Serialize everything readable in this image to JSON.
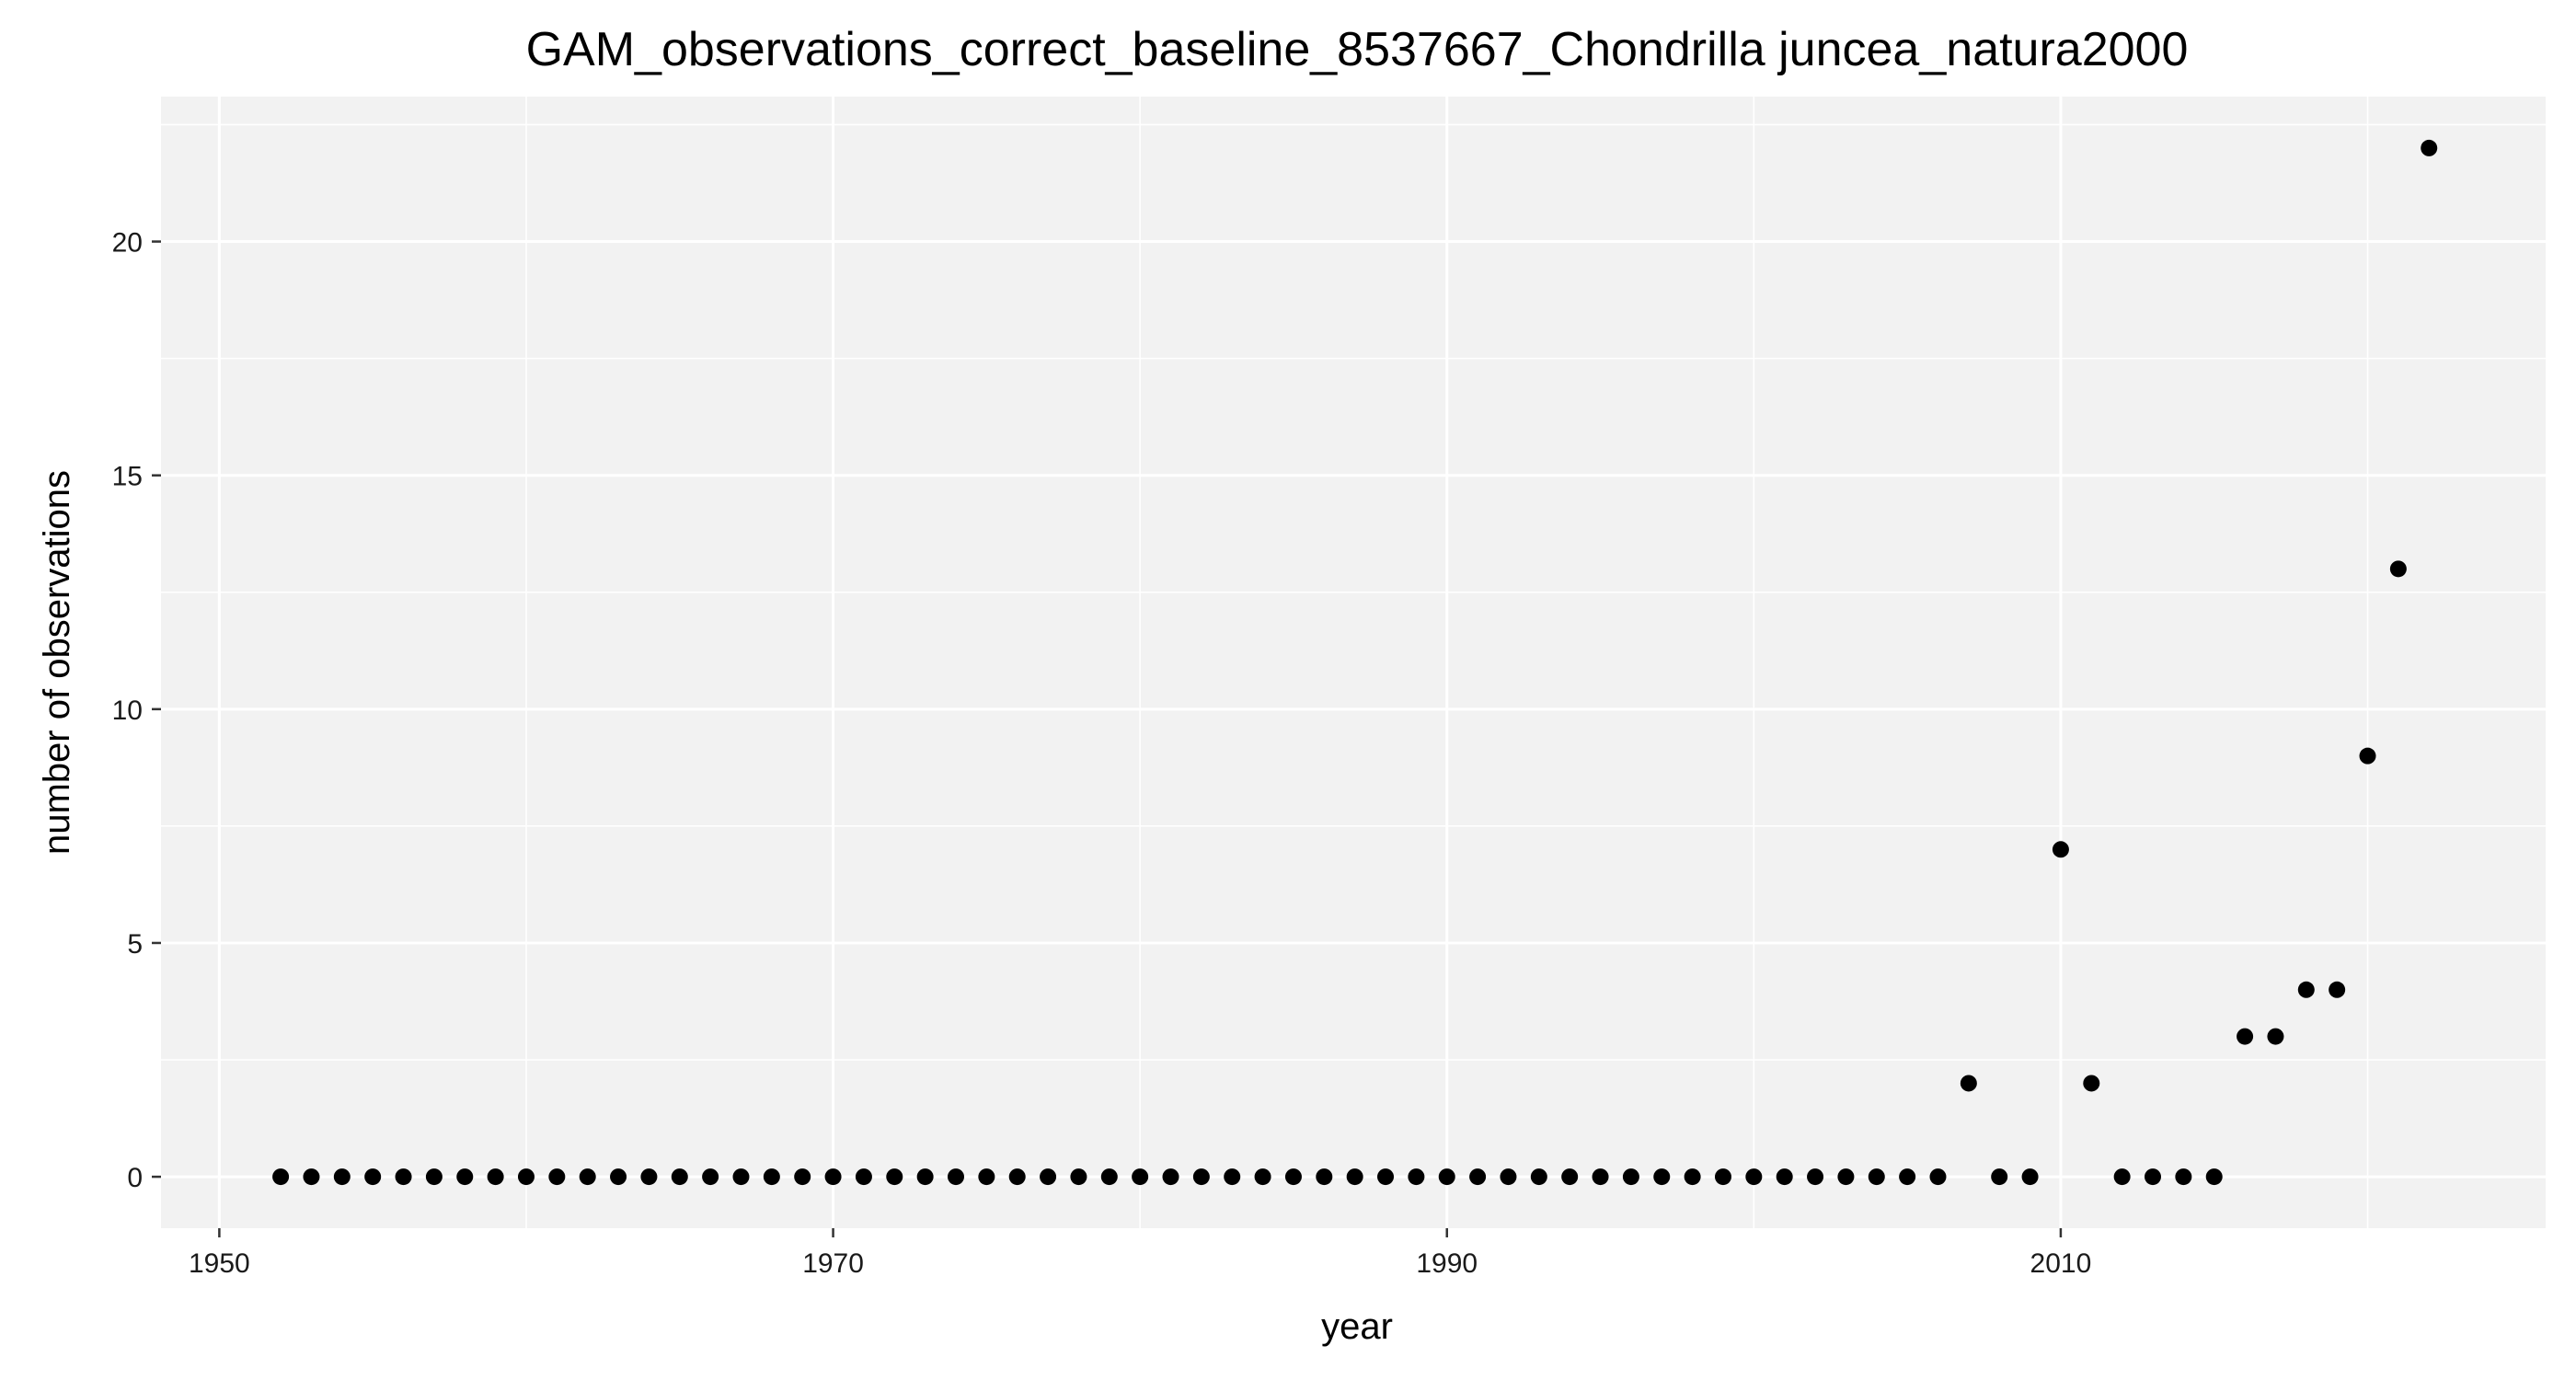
{
  "chart_data": {
    "type": "scatter",
    "title": "GAM_observations_correct_baseline_8537667_Chondrilla juncea_natura2000",
    "xlabel": "year",
    "ylabel": "number of observations",
    "xlim": [
      1948.1,
      2025.8
    ],
    "ylim": [
      -1.1,
      23.1
    ],
    "x_major_ticks": [
      1950,
      1970,
      1990,
      2010
    ],
    "x_minor_ticks": [
      1960,
      1980,
      2000,
      2020
    ],
    "y_major_ticks": [
      0,
      5,
      10,
      15,
      20
    ],
    "y_minor_ticks": [
      2.5,
      7.5,
      12.5,
      17.5,
      22.5
    ],
    "grid": true,
    "colors": {
      "panel": "#f2f2f2",
      "grid": "#ffffff",
      "point": "#000000"
    },
    "x": [
      1952,
      1953,
      1954,
      1955,
      1956,
      1957,
      1958,
      1959,
      1960,
      1961,
      1962,
      1963,
      1964,
      1965,
      1966,
      1967,
      1968,
      1969,
      1970,
      1971,
      1972,
      1973,
      1974,
      1975,
      1976,
      1977,
      1978,
      1979,
      1980,
      1981,
      1982,
      1983,
      1984,
      1985,
      1986,
      1987,
      1988,
      1989,
      1990,
      1991,
      1992,
      1993,
      1994,
      1995,
      1996,
      1997,
      1998,
      1999,
      2000,
      2001,
      2002,
      2003,
      2004,
      2005,
      2006,
      2007,
      2008,
      2009,
      2010,
      2011,
      2012,
      2013,
      2014,
      2015,
      2016,
      2017,
      2018,
      2019,
      2020,
      2021,
      2022
    ],
    "y": [
      0,
      0,
      0,
      0,
      0,
      0,
      0,
      0,
      0,
      0,
      0,
      0,
      0,
      0,
      0,
      0,
      0,
      0,
      0,
      0,
      0,
      0,
      0,
      0,
      0,
      0,
      0,
      0,
      0,
      0,
      0,
      0,
      0,
      0,
      0,
      0,
      0,
      0,
      0,
      0,
      0,
      0,
      0,
      0,
      0,
      0,
      0,
      0,
      0,
      0,
      0,
      0,
      0,
      0,
      0,
      2,
      0,
      0,
      7,
      2,
      0,
      0,
      0,
      0,
      3,
      3,
      4,
      4,
      9,
      13,
      22
    ]
  }
}
